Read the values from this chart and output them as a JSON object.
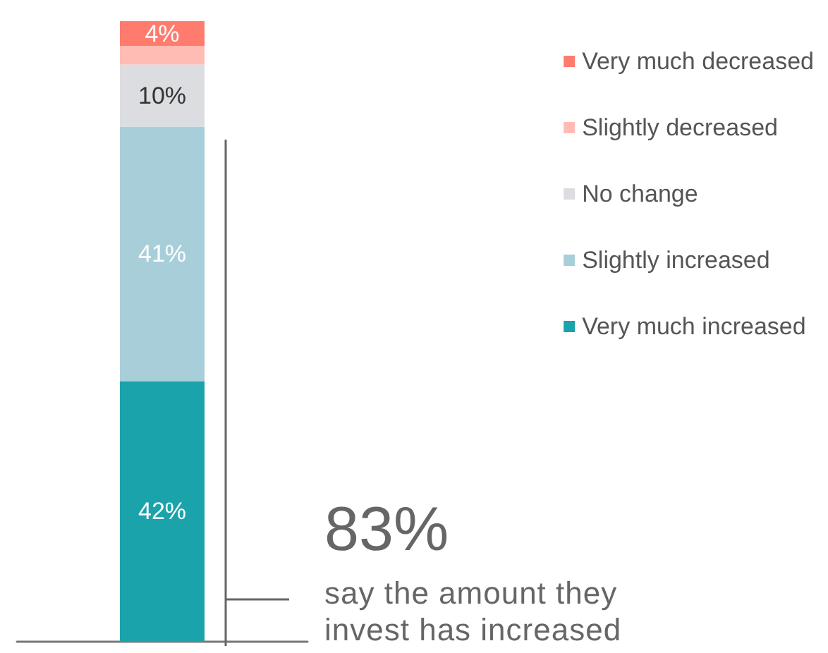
{
  "chart_data": {
    "type": "bar",
    "stacked": true,
    "categories": [
      null
    ],
    "ylim": [
      0,
      100
    ],
    "legend": "top right",
    "grid": false,
    "series": [
      {
        "name": "Very much increased",
        "color": "#1aa3ab",
        "values": [
          42
        ],
        "value_labels": [
          "42%"
        ]
      },
      {
        "name": "Slightly increased",
        "color": "#a8cfd9",
        "values": [
          41
        ],
        "value_labels": [
          "41%"
        ]
      },
      {
        "name": "No change",
        "color": "#dcdde0",
        "values": [
          10
        ],
        "value_labels": [
          "10%"
        ]
      },
      {
        "name": "Slightly decreased",
        "color": "#ffbcb5",
        "values": [
          3
        ],
        "value_labels": [
          null
        ]
      },
      {
        "name": "Very much decreased",
        "color": "#ff7b6e",
        "values": [
          4
        ],
        "value_labels": [
          "4%"
        ]
      }
    ],
    "annotations": [
      "83%",
      "say the amount they invest has increased"
    ]
  }
}
